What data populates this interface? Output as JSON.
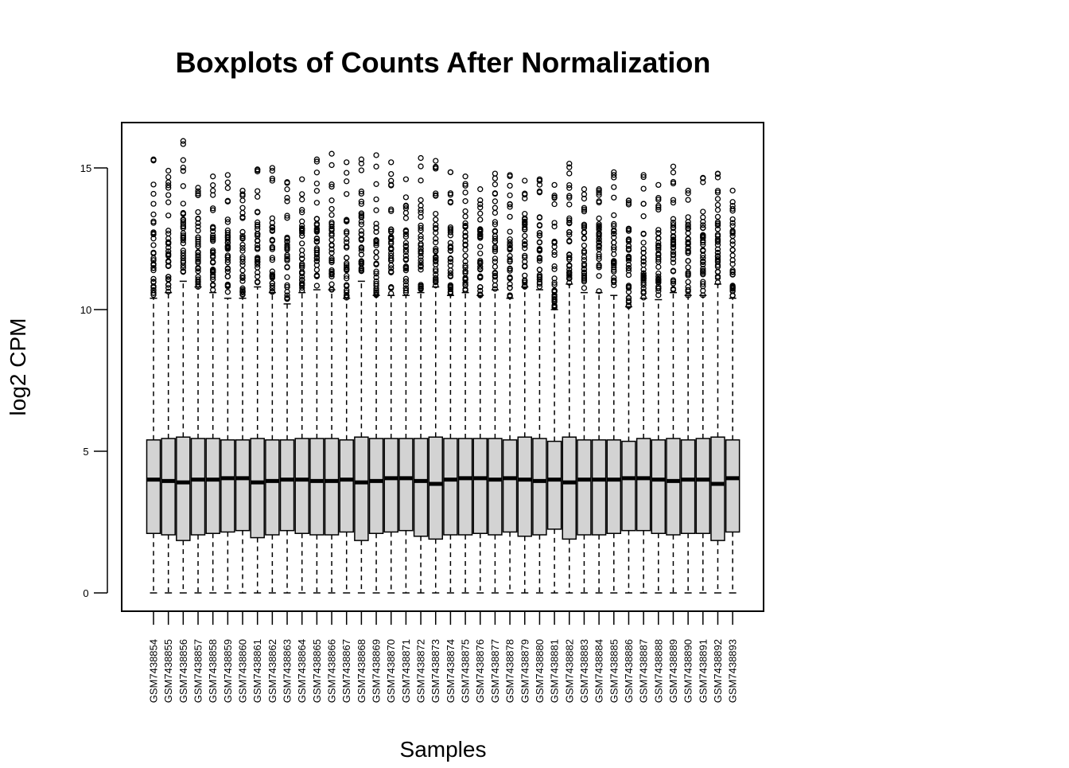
{
  "chart_data": {
    "type": "boxplot",
    "title": "Boxplots of Counts After Normalization",
    "xlabel": "Samples",
    "ylabel": "log2 CPM",
    "ylim": [
      -0.6,
      16.6
    ],
    "yticks": [
      0,
      5,
      10,
      15
    ],
    "box_fill": "#d3d3d3",
    "line_color": "#000000",
    "categories": [
      "GSM7438854",
      "GSM7438855",
      "GSM7438856",
      "GSM7438857",
      "GSM7438858",
      "GSM7438859",
      "GSM7438860",
      "GSM7438861",
      "GSM7438862",
      "GSM7438863",
      "GSM7438864",
      "GSM7438865",
      "GSM7438866",
      "GSM7438867",
      "GSM7438868",
      "GSM7438869",
      "GSM7438870",
      "GSM7438871",
      "GSM7438872",
      "GSM7438873",
      "GSM7438874",
      "GSM7438875",
      "GSM7438876",
      "GSM7438877",
      "GSM7438878",
      "GSM7438879",
      "GSM7438880",
      "GSM7438881",
      "GSM7438882",
      "GSM7438883",
      "GSM7438884",
      "GSM7438885",
      "GSM7438886",
      "GSM7438887",
      "GSM7438888",
      "GSM7438889",
      "GSM7438890",
      "GSM7438891",
      "GSM7438892",
      "GSM7438893"
    ],
    "boxes": [
      {
        "min": 0,
        "q1": 2.1,
        "median": 4.0,
        "q3": 5.4,
        "whisker_high": 10.4,
        "outlier_start": 10.4,
        "max_outlier": 15.3
      },
      {
        "min": 0,
        "q1": 2.05,
        "median": 3.95,
        "q3": 5.45,
        "whisker_high": 10.6,
        "outlier_start": 10.6,
        "max_outlier": 14.9
      },
      {
        "min": 0,
        "q1": 1.85,
        "median": 3.9,
        "q3": 5.5,
        "whisker_high": 11.0,
        "outlier_start": 11.0,
        "max_outlier": 15.95
      },
      {
        "min": 0,
        "q1": 2.05,
        "median": 4.0,
        "q3": 5.45,
        "whisker_high": 10.8,
        "outlier_start": 10.8,
        "max_outlier": 14.3
      },
      {
        "min": 0,
        "q1": 2.1,
        "median": 4.0,
        "q3": 5.45,
        "whisker_high": 10.6,
        "outlier_start": 10.6,
        "max_outlier": 14.7
      },
      {
        "min": 0,
        "q1": 2.15,
        "median": 4.05,
        "q3": 5.4,
        "whisker_high": 10.4,
        "outlier_start": 10.4,
        "max_outlier": 14.75
      },
      {
        "min": 0,
        "q1": 2.2,
        "median": 4.05,
        "q3": 5.4,
        "whisker_high": 10.4,
        "outlier_start": 10.4,
        "max_outlier": 14.2
      },
      {
        "min": 0,
        "q1": 1.95,
        "median": 3.9,
        "q3": 5.45,
        "whisker_high": 10.8,
        "outlier_start": 10.8,
        "max_outlier": 14.95
      },
      {
        "min": 0,
        "q1": 2.05,
        "median": 3.95,
        "q3": 5.4,
        "whisker_high": 10.6,
        "outlier_start": 10.6,
        "max_outlier": 15.0
      },
      {
        "min": 0,
        "q1": 2.2,
        "median": 4.0,
        "q3": 5.4,
        "whisker_high": 10.2,
        "outlier_start": 10.2,
        "max_outlier": 14.5
      },
      {
        "min": 0,
        "q1": 2.1,
        "median": 4.0,
        "q3": 5.45,
        "whisker_high": 10.6,
        "outlier_start": 10.6,
        "max_outlier": 14.6
      },
      {
        "min": 0,
        "q1": 2.05,
        "median": 3.95,
        "q3": 5.45,
        "whisker_high": 10.7,
        "outlier_start": 10.7,
        "max_outlier": 15.3
      },
      {
        "min": 0,
        "q1": 2.05,
        "median": 3.95,
        "q3": 5.45,
        "whisker_high": 10.7,
        "outlier_start": 10.7,
        "max_outlier": 15.5
      },
      {
        "min": 0,
        "q1": 2.15,
        "median": 4.0,
        "q3": 5.4,
        "whisker_high": 10.4,
        "outlier_start": 10.4,
        "max_outlier": 15.2
      },
      {
        "min": 0,
        "q1": 1.85,
        "median": 3.9,
        "q3": 5.5,
        "whisker_high": 11.0,
        "outlier_start": 11.0,
        "max_outlier": 15.3
      },
      {
        "min": 0,
        "q1": 2.1,
        "median": 3.95,
        "q3": 5.45,
        "whisker_high": 10.5,
        "outlier_start": 10.5,
        "max_outlier": 15.45
      },
      {
        "min": 0,
        "q1": 2.15,
        "median": 4.05,
        "q3": 5.45,
        "whisker_high": 10.5,
        "outlier_start": 10.5,
        "max_outlier": 15.2
      },
      {
        "min": 0,
        "q1": 2.2,
        "median": 4.05,
        "q3": 5.45,
        "whisker_high": 10.5,
        "outlier_start": 10.5,
        "max_outlier": 14.6
      },
      {
        "min": 0,
        "q1": 2.0,
        "median": 3.95,
        "q3": 5.45,
        "whisker_high": 10.6,
        "outlier_start": 10.6,
        "max_outlier": 15.35
      },
      {
        "min": 0,
        "q1": 1.9,
        "median": 3.85,
        "q3": 5.5,
        "whisker_high": 10.8,
        "outlier_start": 10.8,
        "max_outlier": 15.25
      },
      {
        "min": 0,
        "q1": 2.05,
        "median": 4.0,
        "q3": 5.45,
        "whisker_high": 10.5,
        "outlier_start": 10.5,
        "max_outlier": 14.85
      },
      {
        "min": 0,
        "q1": 2.05,
        "median": 4.05,
        "q3": 5.45,
        "whisker_high": 10.6,
        "outlier_start": 10.6,
        "max_outlier": 14.7
      },
      {
        "min": 0,
        "q1": 2.1,
        "median": 4.05,
        "q3": 5.45,
        "whisker_high": 10.5,
        "outlier_start": 10.5,
        "max_outlier": 14.25
      },
      {
        "min": 0,
        "q1": 2.05,
        "median": 4.0,
        "q3": 5.45,
        "whisker_high": 10.7,
        "outlier_start": 10.7,
        "max_outlier": 14.8
      },
      {
        "min": 0,
        "q1": 2.15,
        "median": 4.05,
        "q3": 5.4,
        "whisker_high": 10.4,
        "outlier_start": 10.4,
        "max_outlier": 14.75
      },
      {
        "min": 0,
        "q1": 2.0,
        "median": 4.0,
        "q3": 5.5,
        "whisker_high": 10.8,
        "outlier_start": 10.8,
        "max_outlier": 14.55
      },
      {
        "min": 0,
        "q1": 2.05,
        "median": 3.95,
        "q3": 5.45,
        "whisker_high": 10.7,
        "outlier_start": 10.7,
        "max_outlier": 14.6
      },
      {
        "min": 0,
        "q1": 2.25,
        "median": 4.0,
        "q3": 5.35,
        "whisker_high": 10.0,
        "outlier_start": 10.0,
        "max_outlier": 14.4
      },
      {
        "min": 0,
        "q1": 1.9,
        "median": 3.9,
        "q3": 5.5,
        "whisker_high": 10.9,
        "outlier_start": 10.9,
        "max_outlier": 15.15
      },
      {
        "min": 0,
        "q1": 2.05,
        "median": 4.0,
        "q3": 5.4,
        "whisker_high": 10.6,
        "outlier_start": 10.6,
        "max_outlier": 14.25
      },
      {
        "min": 0,
        "q1": 2.05,
        "median": 4.0,
        "q3": 5.4,
        "whisker_high": 10.6,
        "outlier_start": 10.6,
        "max_outlier": 14.25
      },
      {
        "min": 0,
        "q1": 2.1,
        "median": 4.0,
        "q3": 5.4,
        "whisker_high": 10.5,
        "outlier_start": 10.5,
        "max_outlier": 14.85
      },
      {
        "min": 0,
        "q1": 2.2,
        "median": 4.05,
        "q3": 5.35,
        "whisker_high": 10.1,
        "outlier_start": 10.1,
        "max_outlier": 13.85
      },
      {
        "min": 0,
        "q1": 2.2,
        "median": 4.05,
        "q3": 5.45,
        "whisker_high": 10.4,
        "outlier_start": 10.4,
        "max_outlier": 14.75
      },
      {
        "min": 0,
        "q1": 2.1,
        "median": 4.0,
        "q3": 5.4,
        "whisker_high": 10.35,
        "outlier_start": 10.35,
        "max_outlier": 14.4
      },
      {
        "min": 0,
        "q1": 2.05,
        "median": 3.95,
        "q3": 5.45,
        "whisker_high": 10.6,
        "outlier_start": 10.6,
        "max_outlier": 15.05
      },
      {
        "min": 0,
        "q1": 2.1,
        "median": 4.0,
        "q3": 5.4,
        "whisker_high": 10.5,
        "outlier_start": 10.5,
        "max_outlier": 14.2
      },
      {
        "min": 0,
        "q1": 2.1,
        "median": 4.0,
        "q3": 5.45,
        "whisker_high": 10.5,
        "outlier_start": 10.5,
        "max_outlier": 14.65
      },
      {
        "min": 0,
        "q1": 1.85,
        "median": 3.85,
        "q3": 5.5,
        "whisker_high": 10.9,
        "outlier_start": 10.9,
        "max_outlier": 14.8
      },
      {
        "min": 0,
        "q1": 2.15,
        "median": 4.05,
        "q3": 5.4,
        "whisker_high": 10.4,
        "outlier_start": 10.4,
        "max_outlier": 14.2
      }
    ]
  }
}
